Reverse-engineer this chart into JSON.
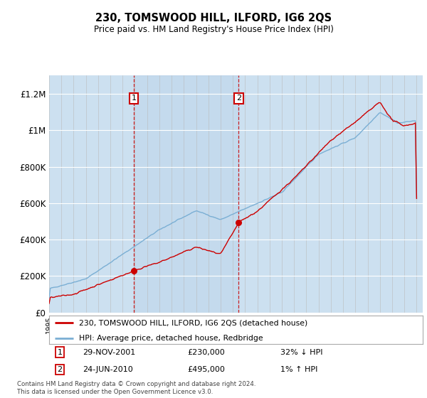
{
  "title": "230, TOMSWOOD HILL, ILFORD, IG6 2QS",
  "subtitle": "Price paid vs. HM Land Registry's House Price Index (HPI)",
  "legend_line1": "230, TOMSWOOD HILL, ILFORD, IG6 2QS (detached house)",
  "legend_line2": "HPI: Average price, detached house, Redbridge",
  "sale1_date": "29-NOV-2001",
  "sale1_price": "£230,000",
  "sale1_hpi": "32% ↓ HPI",
  "sale2_date": "24-JUN-2010",
  "sale2_price": "£495,000",
  "sale2_hpi": "1% ↑ HPI",
  "footer": "Contains HM Land Registry data © Crown copyright and database right 2024.\nThis data is licensed under the Open Government Licence v3.0.",
  "hpi_color": "#7bafd4",
  "price_color": "#cc0000",
  "background_color": "#ffffff",
  "plot_bg_color": "#f0f0f0",
  "shade_color": "#cce0f0",
  "ylim": [
    0,
    1300000
  ],
  "yticks": [
    0,
    200000,
    400000,
    600000,
    800000,
    1000000,
    1200000
  ],
  "ytick_labels": [
    "£0",
    "£200K",
    "£400K",
    "£600K",
    "£800K",
    "£1M",
    "£1.2M"
  ],
  "year_start": 1995,
  "year_end": 2025,
  "sale1_year": 2001.91,
  "sale2_year": 2010.48,
  "sale1_value": 230000,
  "sale2_value": 495000
}
